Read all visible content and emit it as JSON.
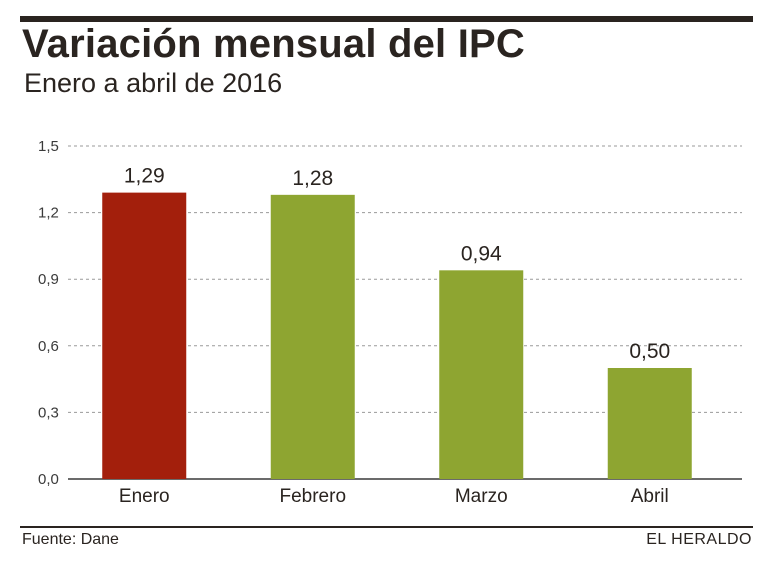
{
  "header": {
    "title": "Variación mensual del IPC",
    "subtitle": "Enero a abril de 2016"
  },
  "chart_data": {
    "type": "bar",
    "categories": [
      "Enero",
      "Febrero",
      "Marzo",
      "Abril"
    ],
    "values": [
      1.29,
      1.28,
      0.94,
      0.5
    ],
    "value_labels": [
      "1,29",
      "1,28",
      "0,94",
      "0,50"
    ],
    "ylim": [
      0,
      1.5
    ],
    "yticks": [
      0,
      0.3,
      0.6,
      0.9,
      1.2,
      1.5
    ],
    "ytick_labels": [
      "0,0",
      "0,3",
      "0,6",
      "0,9",
      "1,2",
      "1,5"
    ],
    "grid": true,
    "highlight_color": "#a31f0c",
    "bar_color": "#8ea531",
    "title": "Variación mensual del IPC",
    "xlabel": "",
    "ylabel": ""
  },
  "footer": {
    "source": "Fuente: Dane",
    "brand": "EL HERALDO"
  }
}
